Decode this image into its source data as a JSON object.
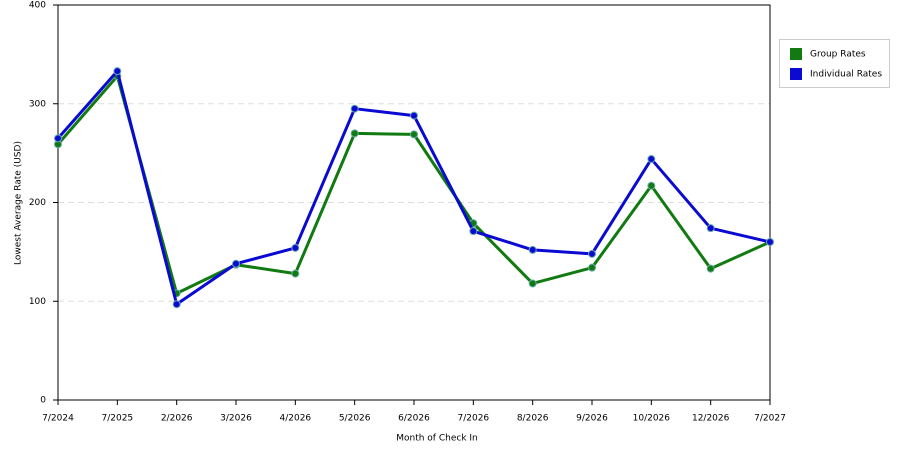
{
  "chart_data": {
    "type": "line",
    "x_label": "Month of Check In",
    "y_label": "Lowest Average Rate (USD)",
    "categories": [
      "7/2024",
      "7/2025",
      "2/2026",
      "3/2026",
      "4/2026",
      "5/2026",
      "6/2026",
      "7/2026",
      "8/2026",
      "9/2026",
      "10/2026",
      "12/2026",
      "7/2027"
    ],
    "series": [
      {
        "name": "Group Rates",
        "color": "#117a11",
        "values": [
          259,
          328,
          108,
          137,
          128,
          270,
          269,
          179,
          118,
          134,
          217,
          133,
          160
        ]
      },
      {
        "name": "Individual Rates",
        "color": "#0a0ad2",
        "values": [
          265,
          333,
          97,
          138,
          154,
          295,
          288,
          171,
          152,
          148,
          244,
          174,
          160
        ]
      }
    ],
    "ylim": [
      0,
      400
    ],
    "yticks": [
      0,
      100,
      200,
      300,
      400
    ],
    "grid": true,
    "legend": "right"
  }
}
